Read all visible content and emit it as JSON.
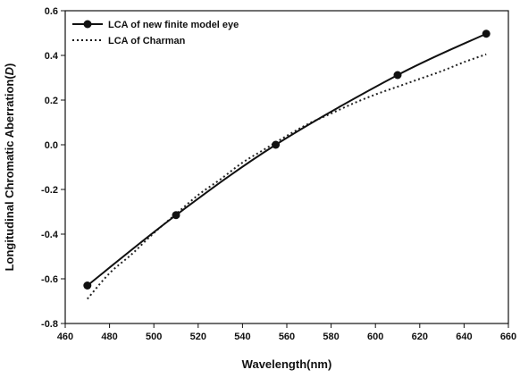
{
  "chart_data": {
    "type": "line",
    "xlabel": "Wavelength(nm)",
    "ylabel_prefix": "Longitudinal Chromatic Aberration(",
    "ylabel_unit": "D",
    "ylabel_suffix": ")",
    "xlim": [
      460,
      660
    ],
    "ylim": [
      -0.8,
      0.6
    ],
    "x_ticks": [
      460,
      480,
      500,
      520,
      540,
      560,
      580,
      600,
      620,
      640,
      660
    ],
    "x_tick_labels": [
      "460",
      "480",
      "500",
      "520",
      "540",
      "560",
      "580",
      "600",
      "620",
      "640",
      "660"
    ],
    "y_ticks": [
      -0.8,
      -0.6,
      -0.4,
      -0.2,
      0.0,
      0.2,
      0.4,
      0.6
    ],
    "y_tick_labels": [
      "-0.8",
      "-0.6",
      "-0.4",
      "-0.2",
      "0.0",
      "0.2",
      "0.4",
      "0.6"
    ],
    "grid": false,
    "legend_position": "top-left",
    "series": [
      {
        "name": "LCA of new finite model eye",
        "style": "solid-with-circles",
        "x": [
          470,
          510,
          555,
          610,
          650
        ],
        "y": [
          -0.63,
          -0.315,
          0.0,
          0.312,
          0.497
        ]
      },
      {
        "name": "LCA of Charman",
        "style": "dotted",
        "x": [
          470,
          480,
          490,
          500,
          510,
          520,
          530,
          540,
          550,
          560,
          570,
          580,
          590,
          600,
          610,
          620,
          630,
          640,
          650
        ],
        "y": [
          -0.69,
          -0.575,
          -0.49,
          -0.395,
          -0.31,
          -0.225,
          -0.155,
          -0.08,
          -0.02,
          0.04,
          0.095,
          0.14,
          0.185,
          0.225,
          0.26,
          0.295,
          0.33,
          0.37,
          0.405
        ]
      }
    ]
  }
}
